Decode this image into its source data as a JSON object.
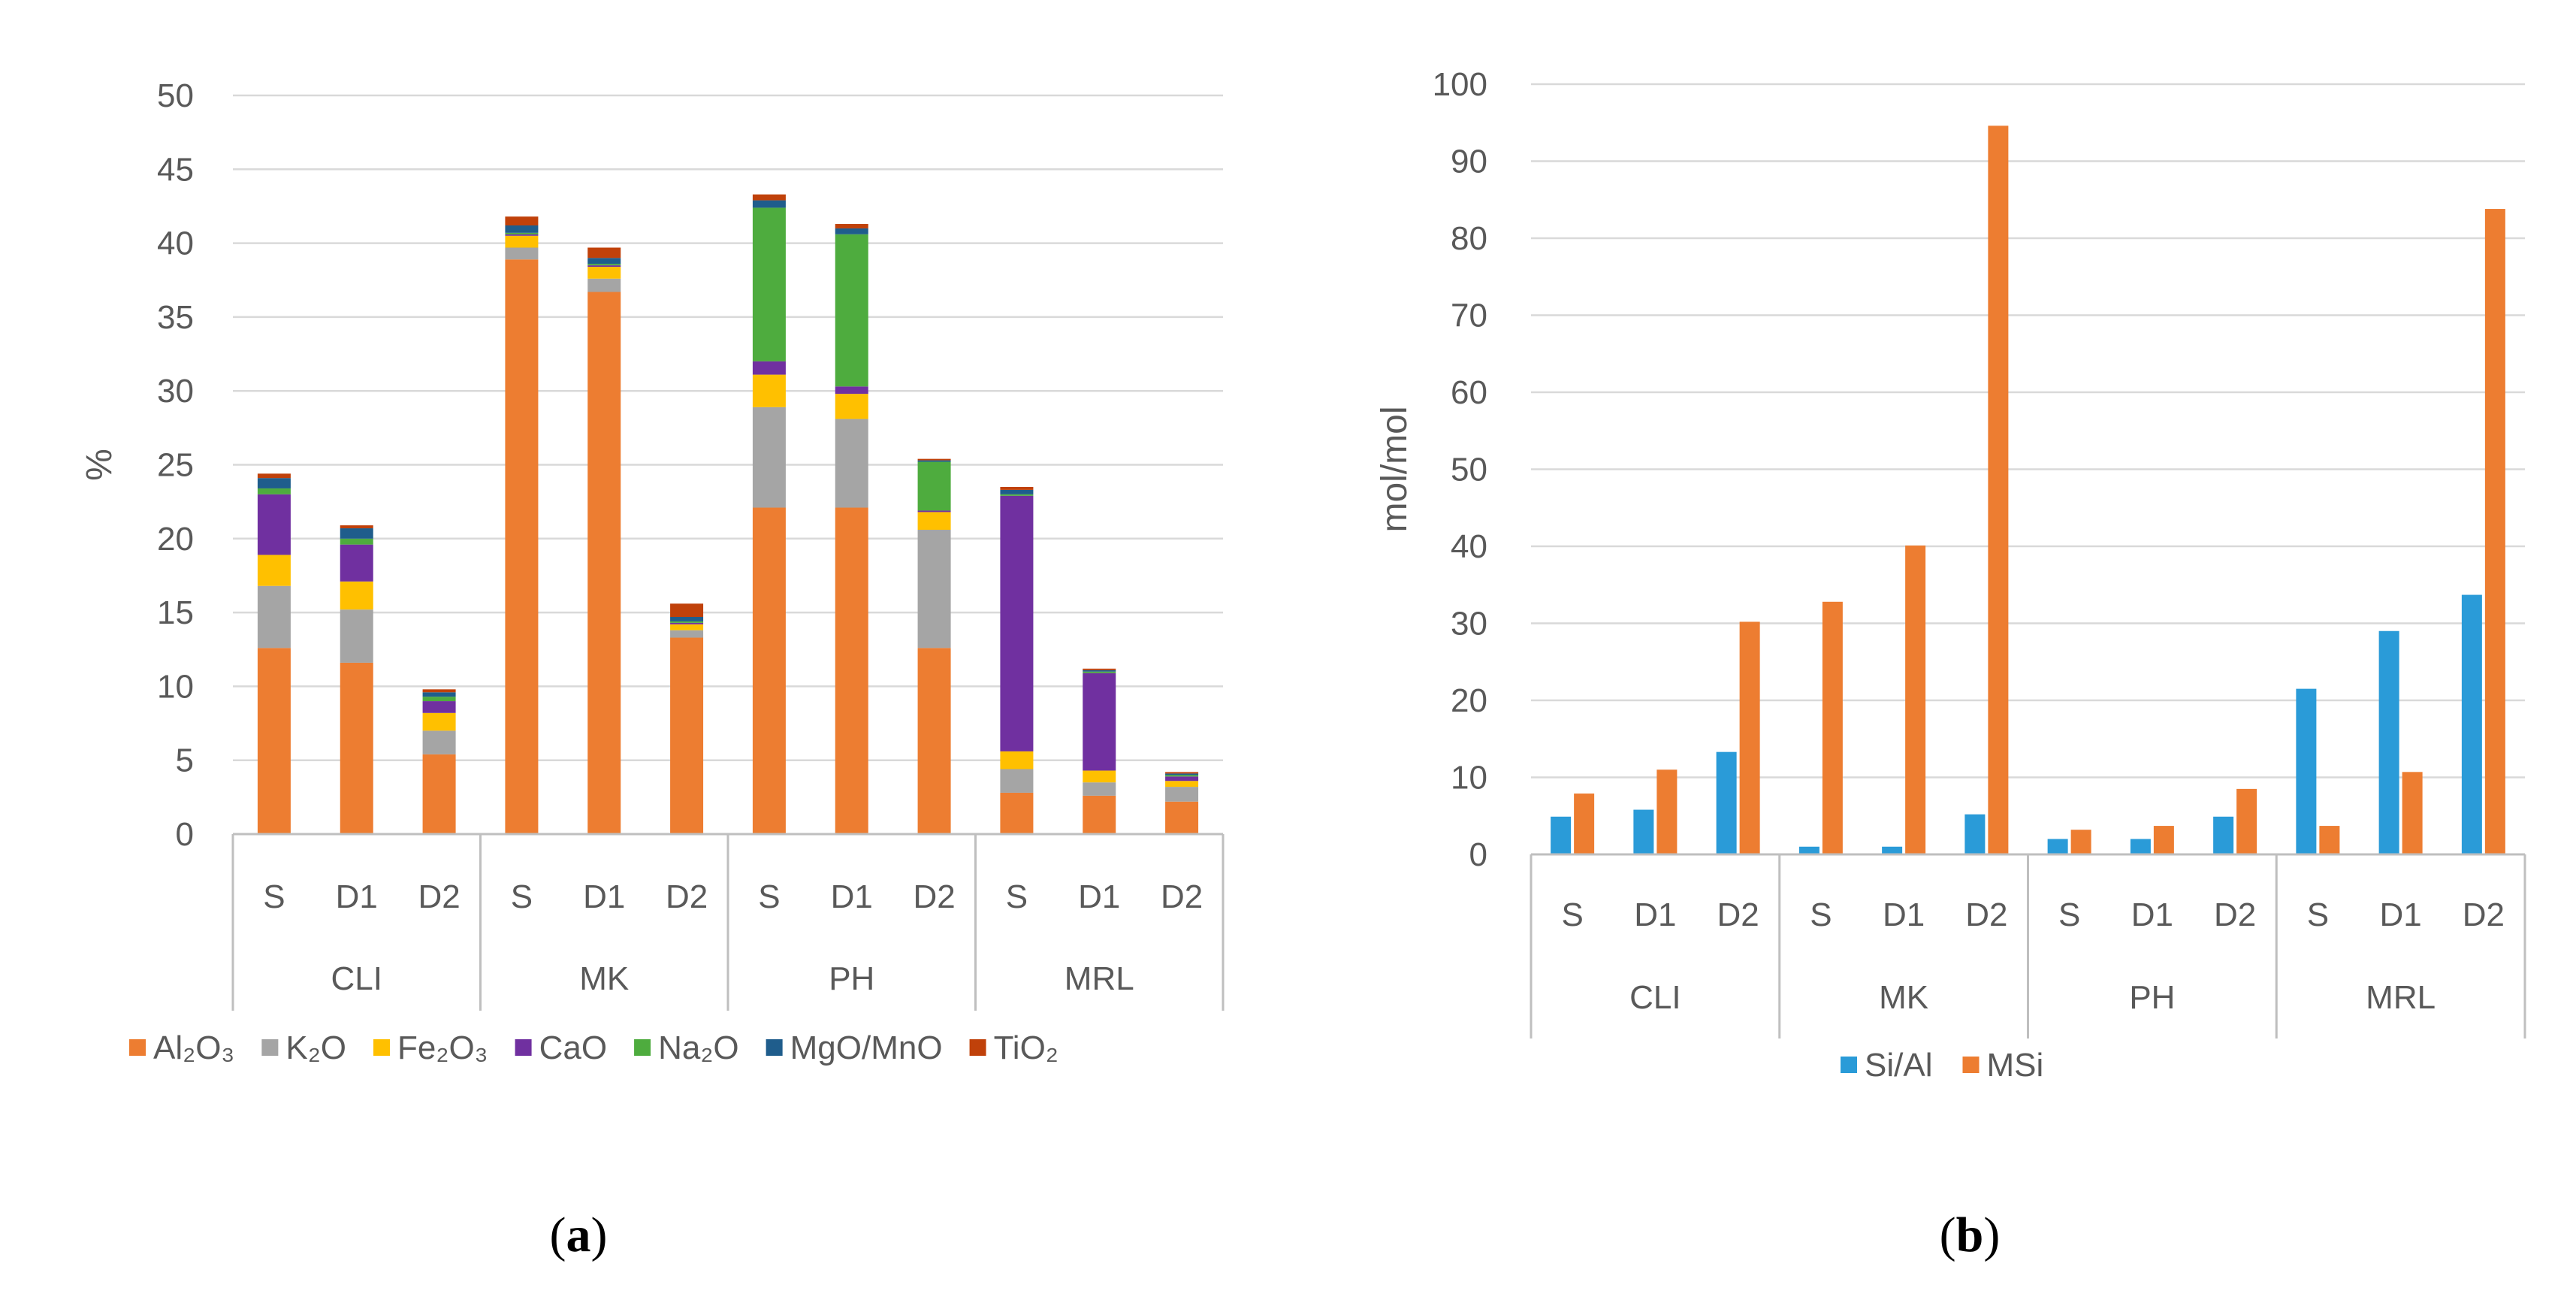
{
  "chart_data": [
    {
      "id": "a",
      "type": "bar",
      "stacked": true,
      "panel_label": "(a)",
      "panel_letter": "a",
      "ylabel": "%",
      "xlabel": "",
      "ylim": [
        0,
        50
      ],
      "yticks": [
        "0",
        "5",
        "10",
        "15",
        "20",
        "25",
        "30",
        "35",
        "40",
        "45",
        "50"
      ],
      "grid": true,
      "legend_position": "bottom",
      "groups": [
        {
          "name": "CLI",
          "categories": [
            "S",
            "D1",
            "D2"
          ]
        },
        {
          "name": "MK",
          "categories": [
            "S",
            "D1",
            "D2"
          ]
        },
        {
          "name": "PH",
          "categories": [
            "S",
            "D1",
            "D2"
          ]
        },
        {
          "name": "MRL",
          "categories": [
            "S",
            "D1",
            "D2"
          ]
        }
      ],
      "series": [
        {
          "name": "Al₂O₃",
          "color": "#ED7D31",
          "values": [
            12.6,
            11.6,
            5.4,
            38.9,
            36.7,
            13.3,
            22.1,
            22.1,
            12.6,
            2.8,
            2.6,
            2.2
          ]
        },
        {
          "name": "K₂O",
          "color": "#A5A5A5",
          "values": [
            4.2,
            3.6,
            1.6,
            0.8,
            0.9,
            0.5,
            6.8,
            6.0,
            8.0,
            1.6,
            0.9,
            1.0
          ]
        },
        {
          "name": "Fe₂O₃",
          "color": "#FFC000",
          "values": [
            2.1,
            1.9,
            1.2,
            0.8,
            0.8,
            0.4,
            2.2,
            1.7,
            1.2,
            1.2,
            0.8,
            0.4
          ]
        },
        {
          "name": "CaO",
          "color": "#7030A0",
          "values": [
            4.1,
            2.5,
            0.8,
            0.1,
            0.1,
            0.1,
            0.9,
            0.5,
            0.1,
            17.3,
            6.6,
            0.3
          ]
        },
        {
          "name": "Na₂O",
          "color": "#4EAC3E",
          "values": [
            0.4,
            0.4,
            0.3,
            0.1,
            0.1,
            0.1,
            10.4,
            10.3,
            3.3,
            0.1,
            0.1,
            0.1
          ]
        },
        {
          "name": "MgO/MnO",
          "color": "#1F5D8C",
          "values": [
            0.7,
            0.7,
            0.3,
            0.5,
            0.4,
            0.3,
            0.5,
            0.4,
            0.1,
            0.3,
            0.1,
            0.1
          ]
        },
        {
          "name": "TiO₂",
          "color": "#C0410A",
          "values": [
            0.3,
            0.2,
            0.2,
            0.6,
            0.7,
            0.9,
            0.4,
            0.3,
            0.1,
            0.2,
            0.1,
            0.1
          ]
        }
      ]
    },
    {
      "id": "b",
      "type": "bar",
      "stacked": false,
      "panel_label": "(b)",
      "panel_letter": "b",
      "ylabel": "mol/mol",
      "xlabel": "",
      "ylim": [
        0,
        100
      ],
      "yticks": [
        "0",
        "10",
        "20",
        "30",
        "40",
        "50",
        "60",
        "70",
        "80",
        "90",
        "100"
      ],
      "grid": true,
      "legend_position": "bottom",
      "groups": [
        {
          "name": "CLI",
          "categories": [
            "S",
            "D1",
            "D2"
          ]
        },
        {
          "name": "MK",
          "categories": [
            "S",
            "D1",
            "D2"
          ]
        },
        {
          "name": "PH",
          "categories": [
            "S",
            "D1",
            "D2"
          ]
        },
        {
          "name": "MRL",
          "categories": [
            "S",
            "D1",
            "D2"
          ]
        }
      ],
      "series": [
        {
          "name": "Si/Al",
          "color": "#2A9BD8",
          "values": [
            4.9,
            5.8,
            13.3,
            1.0,
            1.0,
            5.2,
            2.0,
            2.0,
            4.9,
            21.5,
            29.0,
            33.7
          ]
        },
        {
          "name": "MSi",
          "color": "#ED7D31",
          "values": [
            7.9,
            11.0,
            30.2,
            32.8,
            40.1,
            94.6,
            3.2,
            3.7,
            8.5,
            3.7,
            10.7,
            83.8
          ]
        }
      ]
    }
  ]
}
